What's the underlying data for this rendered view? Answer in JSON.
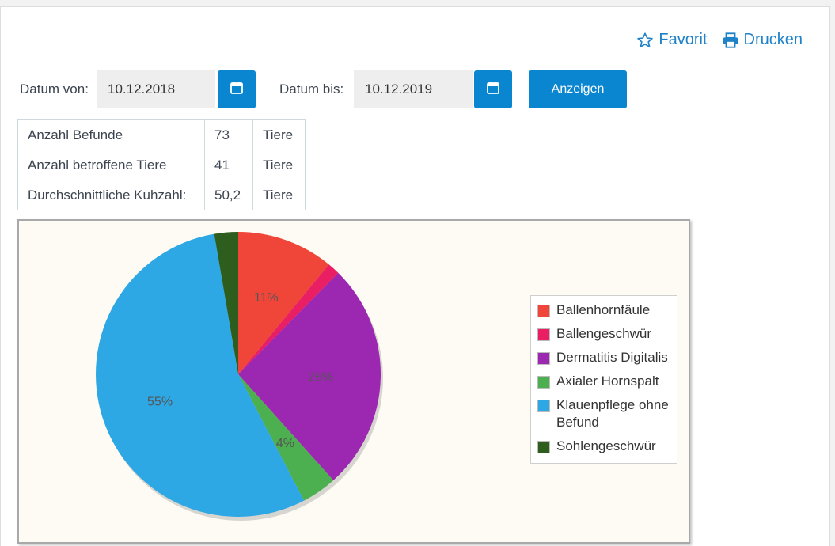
{
  "actions": {
    "favorite_label": "Favorit",
    "print_label": "Drucken"
  },
  "filter": {
    "from_label": "Datum von:",
    "from_value": "10.12.2018",
    "to_label": "Datum bis:",
    "to_value": "10.12.2019",
    "show_label": "Anzeigen"
  },
  "stats": [
    {
      "label": "Anzahl Befunde",
      "value": "73",
      "unit": "Tiere"
    },
    {
      "label": "Anzahl betroffene Tiere",
      "value": "41",
      "unit": "Tiere"
    },
    {
      "label": "Durchschnittliche Kuhzahl:",
      "value": "50,2",
      "unit": "Tiere"
    }
  ],
  "colors": {
    "accent": "#0a86d0",
    "link": "#1e82c8"
  },
  "chart_data": {
    "type": "pie",
    "legend_position": "right",
    "slices": [
      {
        "name": "Ballenhornfäule",
        "value": 11,
        "label": "11%",
        "color": "#f0463a"
      },
      {
        "name": "Ballengeschwür",
        "value": 1.4,
        "label": "",
        "color": "#e91e63"
      },
      {
        "name": "Dermatitis Digitalis",
        "value": 26,
        "label": "26%",
        "color": "#9c27b0"
      },
      {
        "name": "Axialer Hornspalt",
        "value": 4,
        "label": "4%",
        "color": "#4caf50"
      },
      {
        "name": "Klauenpflege ohne Befund",
        "value": 55,
        "label": "55%",
        "color": "#2ea8e4"
      },
      {
        "name": "Sohlengeschwür",
        "value": 2.7,
        "label": "",
        "color": "#2e5e1e"
      }
    ]
  }
}
